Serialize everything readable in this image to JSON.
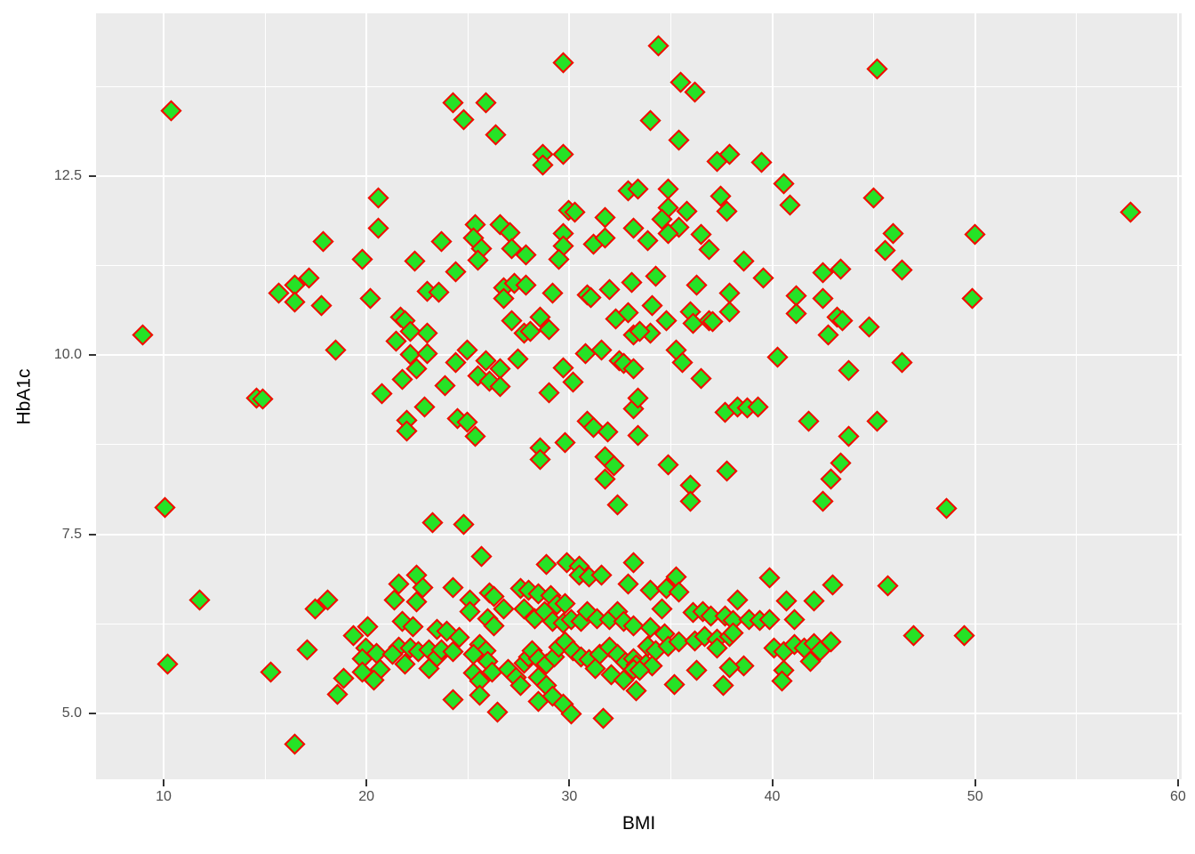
{
  "chart_data": {
    "type": "scatter",
    "title": "",
    "xlabel": "BMI",
    "ylabel": "HbA1c",
    "x_domain": [
      6.67,
      60.18
    ],
    "y_domain": [
      4.08,
      14.77
    ],
    "x_ticks": {
      "values": [
        10,
        20,
        30,
        40,
        50,
        60
      ],
      "labels": [
        "10",
        "20",
        "30",
        "40",
        "50",
        "60"
      ]
    },
    "y_ticks": {
      "values": [
        5.0,
        7.5,
        10.0,
        12.5
      ],
      "labels": [
        "5.0",
        "7.5",
        "10.0",
        "12.5"
      ]
    },
    "x_minor_gridlines": [
      15,
      25,
      35,
      45,
      55
    ],
    "y_minor_gridlines": [
      6.25,
      8.75,
      11.25,
      13.75
    ],
    "grid": true,
    "legend_position": "none",
    "marker": {
      "shape": "diamond",
      "fill": "#26E226",
      "stroke": "#FB0000"
    },
    "style": {
      "panel_bg": "#EBEBEB",
      "gridline_color": "#FFFFFF",
      "tick_label_color": "#4D4D4D",
      "axis_title_color": "#000000",
      "tick_mark_color": "#333333"
    },
    "points": [
      [
        10.4,
        13.4
      ],
      [
        17.9,
        11.58
      ],
      [
        19.8,
        11.33
      ],
      [
        29.7,
        14.08
      ],
      [
        24.3,
        13.51
      ],
      [
        24.8,
        13.28
      ],
      [
        25.9,
        13.51
      ],
      [
        26.4,
        13.07
      ],
      [
        28.7,
        12.79
      ],
      [
        28.7,
        12.65
      ],
      [
        29.7,
        12.79
      ],
      [
        20.6,
        12.19
      ],
      [
        20.6,
        11.77
      ],
      [
        23.7,
        11.58
      ],
      [
        25.4,
        11.81
      ],
      [
        25.3,
        11.63
      ],
      [
        25.7,
        11.48
      ],
      [
        26.6,
        11.81
      ],
      [
        27.1,
        11.7
      ],
      [
        27.2,
        11.48
      ],
      [
        27.9,
        11.39
      ],
      [
        25.5,
        11.32
      ],
      [
        22.4,
        11.31
      ],
      [
        30.0,
        12.01
      ],
      [
        30.3,
        11.99
      ],
      [
        29.7,
        11.69
      ],
      [
        29.7,
        11.52
      ],
      [
        29.5,
        11.33
      ],
      [
        31.2,
        11.54
      ],
      [
        31.8,
        11.92
      ],
      [
        31.8,
        11.63
      ],
      [
        32.9,
        12.29
      ],
      [
        33.2,
        11.77
      ],
      [
        34.4,
        14.31
      ],
      [
        45.2,
        13.99
      ],
      [
        35.5,
        13.8
      ],
      [
        36.2,
        13.67
      ],
      [
        34.0,
        13.27
      ],
      [
        35.4,
        12.99
      ],
      [
        37.3,
        12.7
      ],
      [
        37.9,
        12.79
      ],
      [
        39.5,
        12.69
      ],
      [
        40.6,
        12.38
      ],
      [
        40.9,
        12.09
      ],
      [
        37.5,
        12.21
      ],
      [
        37.8,
        12.0
      ],
      [
        45.0,
        12.19
      ],
      [
        46.0,
        11.69
      ],
      [
        45.6,
        11.45
      ],
      [
        33.4,
        12.31
      ],
      [
        34.9,
        12.05
      ],
      [
        35.8,
        12.0
      ],
      [
        34.6,
        11.89
      ],
      [
        35.4,
        11.78
      ],
      [
        34.9,
        11.69
      ],
      [
        33.9,
        11.59
      ],
      [
        36.5,
        11.68
      ],
      [
        36.9,
        11.47
      ],
      [
        38.6,
        11.31
      ],
      [
        50.0,
        11.68
      ],
      [
        57.7,
        11.99
      ],
      [
        9.0,
        10.28
      ],
      [
        15.7,
        10.86
      ],
      [
        16.5,
        10.97
      ],
      [
        17.2,
        11.07
      ],
      [
        16.5,
        10.74
      ],
      [
        17.8,
        10.69
      ],
      [
        18.5,
        10.07
      ],
      [
        14.6,
        9.4
      ],
      [
        14.9,
        9.38
      ],
      [
        10.1,
        7.87
      ],
      [
        20.2,
        10.79
      ],
      [
        23.0,
        10.88
      ],
      [
        23.6,
        10.87
      ],
      [
        24.4,
        11.16
      ],
      [
        26.8,
        10.93
      ],
      [
        27.3,
        11.0
      ],
      [
        27.9,
        10.97
      ],
      [
        26.8,
        10.79
      ],
      [
        29.2,
        10.86
      ],
      [
        27.2,
        10.47
      ],
      [
        28.6,
        10.53
      ],
      [
        27.8,
        10.3
      ],
      [
        28.1,
        10.32
      ],
      [
        29.0,
        10.35
      ],
      [
        30.9,
        10.83
      ],
      [
        31.1,
        10.8
      ],
      [
        32.0,
        10.91
      ],
      [
        33.1,
        11.01
      ],
      [
        32.3,
        10.5
      ],
      [
        32.9,
        10.59
      ],
      [
        33.2,
        10.28
      ],
      [
        21.7,
        10.52
      ],
      [
        21.9,
        10.48
      ],
      [
        22.2,
        10.32
      ],
      [
        23.0,
        10.3
      ],
      [
        21.5,
        10.19
      ],
      [
        22.2,
        10.0
      ],
      [
        23.0,
        10.02
      ],
      [
        22.5,
        9.8
      ],
      [
        21.8,
        9.66
      ],
      [
        24.4,
        9.89
      ],
      [
        25.0,
        10.06
      ],
      [
        23.9,
        9.57
      ],
      [
        25.9,
        9.91
      ],
      [
        26.6,
        9.8
      ],
      [
        27.5,
        9.94
      ],
      [
        25.5,
        9.71
      ],
      [
        26.1,
        9.63
      ],
      [
        26.6,
        9.55
      ],
      [
        20.8,
        9.46
      ],
      [
        29.7,
        9.81
      ],
      [
        30.2,
        9.62
      ],
      [
        29.0,
        9.47
      ],
      [
        30.8,
        10.02
      ],
      [
        31.6,
        10.07
      ],
      [
        32.5,
        9.92
      ],
      [
        32.7,
        9.88
      ],
      [
        22.9,
        9.27
      ],
      [
        22.0,
        9.08
      ],
      [
        22.0,
        8.93
      ],
      [
        24.5,
        9.11
      ],
      [
        25.0,
        9.06
      ],
      [
        25.4,
        8.86
      ],
      [
        28.6,
        8.7
      ],
      [
        28.6,
        8.54
      ],
      [
        29.8,
        8.77
      ],
      [
        30.9,
        9.07
      ],
      [
        31.2,
        8.98
      ],
      [
        31.9,
        8.92
      ],
      [
        31.8,
        8.57
      ],
      [
        32.2,
        8.45
      ],
      [
        31.8,
        8.27
      ],
      [
        32.4,
        7.9
      ],
      [
        33.2,
        9.8
      ],
      [
        33.2,
        9.24
      ],
      [
        33.4,
        9.4
      ],
      [
        33.4,
        8.87
      ],
      [
        34.3,
        11.1
      ],
      [
        36.3,
        10.97
      ],
      [
        37.9,
        10.86
      ],
      [
        39.6,
        11.07
      ],
      [
        42.5,
        11.15
      ],
      [
        43.4,
        11.19
      ],
      [
        46.4,
        11.18
      ],
      [
        41.2,
        10.82
      ],
      [
        42.5,
        10.79
      ],
      [
        41.2,
        10.57
      ],
      [
        43.2,
        10.52
      ],
      [
        43.5,
        10.48
      ],
      [
        42.8,
        10.28
      ],
      [
        44.8,
        10.39
      ],
      [
        34.1,
        10.69
      ],
      [
        34.8,
        10.48
      ],
      [
        36.0,
        10.6
      ],
      [
        36.1,
        10.44
      ],
      [
        36.9,
        10.48
      ],
      [
        37.1,
        10.46
      ],
      [
        37.9,
        10.6
      ],
      [
        34.0,
        10.3
      ],
      [
        33.5,
        10.32
      ],
      [
        35.3,
        10.07
      ],
      [
        35.6,
        9.89
      ],
      [
        36.5,
        9.67
      ],
      [
        40.3,
        9.96
      ],
      [
        43.8,
        9.78
      ],
      [
        46.4,
        9.89
      ],
      [
        37.7,
        9.2
      ],
      [
        38.3,
        9.27
      ],
      [
        38.8,
        9.26
      ],
      [
        39.3,
        9.27
      ],
      [
        41.8,
        9.07
      ],
      [
        43.8,
        8.86
      ],
      [
        45.2,
        9.07
      ],
      [
        34.9,
        8.46
      ],
      [
        36.0,
        8.18
      ],
      [
        36.0,
        7.95
      ],
      [
        37.8,
        8.37
      ],
      [
        43.4,
        8.49
      ],
      [
        42.9,
        8.26
      ],
      [
        42.5,
        7.95
      ],
      [
        49.9,
        10.78
      ],
      [
        48.6,
        7.85
      ],
      [
        11.8,
        6.57
      ],
      [
        17.5,
        6.45
      ],
      [
        18.1,
        6.57
      ],
      [
        10.2,
        5.68
      ],
      [
        15.3,
        5.57
      ],
      [
        17.1,
        5.88
      ],
      [
        19.4,
        6.08
      ],
      [
        18.9,
        5.48
      ],
      [
        18.6,
        5.26
      ],
      [
        16.5,
        4.57
      ],
      [
        23.3,
        7.65
      ],
      [
        24.8,
        7.63
      ],
      [
        25.7,
        7.18
      ],
      [
        21.6,
        6.8
      ],
      [
        22.5,
        6.92
      ],
      [
        22.8,
        6.75
      ],
      [
        21.4,
        6.57
      ],
      [
        22.5,
        6.55
      ],
      [
        24.3,
        6.75
      ],
      [
        25.1,
        6.57
      ],
      [
        25.1,
        6.42
      ],
      [
        26.1,
        6.68
      ],
      [
        26.3,
        6.62
      ],
      [
        26.8,
        6.45
      ],
      [
        27.6,
        6.74
      ],
      [
        28.0,
        6.71
      ],
      [
        28.5,
        6.66
      ],
      [
        29.1,
        6.64
      ],
      [
        29.4,
        6.51
      ],
      [
        29.8,
        6.53
      ],
      [
        28.9,
        7.07
      ],
      [
        29.9,
        7.1
      ],
      [
        30.5,
        7.05
      ],
      [
        30.5,
        6.92
      ],
      [
        31.0,
        6.9
      ],
      [
        31.6,
        6.92
      ],
      [
        33.2,
        7.1
      ],
      [
        32.9,
        6.8
      ],
      [
        27.8,
        6.45
      ],
      [
        28.3,
        6.32
      ],
      [
        28.8,
        6.41
      ],
      [
        29.2,
        6.28
      ],
      [
        29.7,
        6.25
      ],
      [
        30.1,
        6.3
      ],
      [
        30.6,
        6.28
      ],
      [
        30.9,
        6.41
      ],
      [
        31.4,
        6.32
      ],
      [
        32.0,
        6.3
      ],
      [
        32.4,
        6.41
      ],
      [
        32.7,
        6.28
      ],
      [
        33.2,
        6.22
      ],
      [
        26.0,
        6.32
      ],
      [
        26.3,
        6.22
      ],
      [
        20.1,
        6.2
      ],
      [
        21.8,
        6.28
      ],
      [
        22.3,
        6.2
      ],
      [
        23.5,
        6.16
      ],
      [
        24.0,
        6.14
      ],
      [
        24.6,
        6.06
      ],
      [
        21.6,
        5.92
      ],
      [
        22.2,
        5.91
      ],
      [
        20.0,
        5.91
      ],
      [
        20.5,
        5.83
      ],
      [
        19.8,
        5.76
      ],
      [
        19.8,
        5.57
      ],
      [
        20.7,
        5.61
      ],
      [
        21.3,
        5.82
      ],
      [
        22.6,
        5.86
      ],
      [
        23.1,
        5.88
      ],
      [
        23.5,
        5.78
      ],
      [
        23.7,
        5.88
      ],
      [
        24.3,
        5.85
      ],
      [
        23.1,
        5.62
      ],
      [
        20.4,
        5.46
      ],
      [
        21.9,
        5.68
      ],
      [
        25.6,
        5.96
      ],
      [
        25.9,
        5.87
      ],
      [
        25.3,
        5.82
      ],
      [
        26.0,
        5.72
      ],
      [
        26.2,
        5.57
      ],
      [
        25.3,
        5.56
      ],
      [
        25.6,
        5.44
      ],
      [
        27.0,
        5.61
      ],
      [
        27.4,
        5.49
      ],
      [
        27.8,
        5.7
      ],
      [
        28.0,
        5.78
      ],
      [
        28.2,
        5.87
      ],
      [
        28.5,
        5.76
      ],
      [
        28.9,
        5.68
      ],
      [
        29.3,
        5.78
      ],
      [
        29.5,
        5.92
      ],
      [
        29.8,
        5.99
      ],
      [
        30.2,
        5.87
      ],
      [
        30.6,
        5.78
      ],
      [
        31.0,
        5.74
      ],
      [
        31.5,
        5.82
      ],
      [
        32.0,
        5.92
      ],
      [
        32.4,
        5.82
      ],
      [
        32.8,
        5.71
      ],
      [
        33.2,
        5.76
      ],
      [
        33.3,
        5.67
      ],
      [
        31.3,
        5.62
      ],
      [
        27.6,
        5.38
      ],
      [
        28.5,
        5.49
      ],
      [
        28.9,
        5.38
      ],
      [
        29.2,
        5.24
      ],
      [
        29.7,
        5.12
      ],
      [
        30.1,
        4.99
      ],
      [
        28.5,
        5.16
      ],
      [
        25.6,
        5.25
      ],
      [
        24.3,
        5.19
      ],
      [
        26.5,
        5.01
      ],
      [
        31.7,
        4.93
      ],
      [
        32.1,
        5.53
      ],
      [
        32.7,
        5.46
      ],
      [
        33.2,
        5.61
      ],
      [
        33.3,
        5.31
      ],
      [
        35.3,
        6.9
      ],
      [
        34.0,
        6.71
      ],
      [
        34.8,
        6.74
      ],
      [
        35.4,
        6.69
      ],
      [
        39.9,
        6.88
      ],
      [
        38.3,
        6.57
      ],
      [
        40.7,
        6.56
      ],
      [
        42.1,
        6.56
      ],
      [
        43.0,
        6.79
      ],
      [
        45.7,
        6.77
      ],
      [
        34.6,
        6.45
      ],
      [
        36.1,
        6.4
      ],
      [
        36.6,
        6.42
      ],
      [
        37.0,
        6.35
      ],
      [
        37.7,
        6.35
      ],
      [
        38.1,
        6.29
      ],
      [
        38.9,
        6.3
      ],
      [
        39.4,
        6.29
      ],
      [
        39.9,
        6.3
      ],
      [
        41.1,
        6.3
      ],
      [
        34.0,
        6.19
      ],
      [
        34.7,
        6.1
      ],
      [
        33.9,
        5.93
      ],
      [
        34.3,
        5.87
      ],
      [
        34.9,
        5.93
      ],
      [
        35.4,
        5.99
      ],
      [
        36.2,
        6.01
      ],
      [
        36.7,
        6.07
      ],
      [
        37.3,
        6.03
      ],
      [
        37.3,
        5.91
      ],
      [
        37.9,
        6.07
      ],
      [
        38.1,
        6.11
      ],
      [
        33.8,
        5.68
      ],
      [
        34.1,
        5.66
      ],
      [
        33.5,
        5.59
      ],
      [
        35.2,
        5.4
      ],
      [
        36.3,
        5.6
      ],
      [
        37.6,
        5.38
      ],
      [
        38.6,
        5.66
      ],
      [
        37.9,
        5.63
      ],
      [
        40.1,
        5.91
      ],
      [
        40.6,
        5.85
      ],
      [
        41.1,
        5.95
      ],
      [
        41.6,
        5.91
      ],
      [
        42.1,
        5.97
      ],
      [
        42.4,
        5.87
      ],
      [
        42.9,
        5.99
      ],
      [
        41.9,
        5.72
      ],
      [
        40.6,
        5.6
      ],
      [
        40.5,
        5.44
      ],
      [
        47.0,
        6.08
      ],
      [
        49.5,
        6.08
      ],
      [
        34.9,
        12.31
      ]
    ]
  }
}
